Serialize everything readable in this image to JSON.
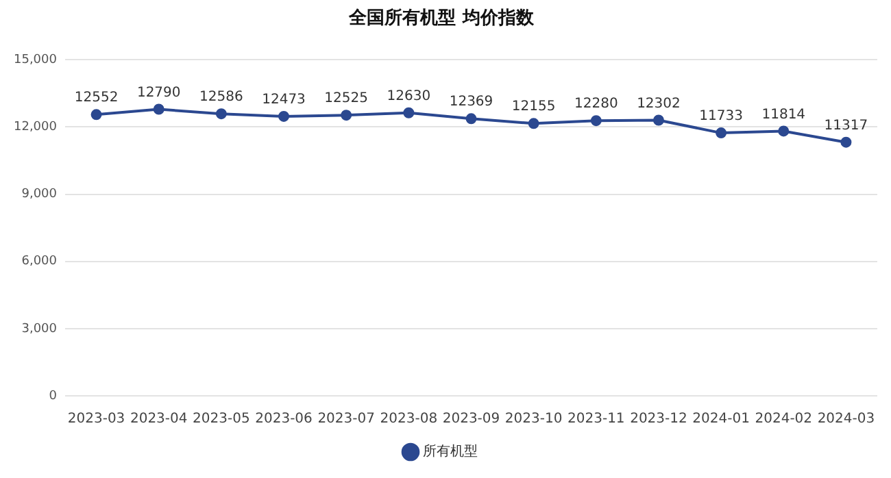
{
  "chart_data": {
    "type": "line",
    "title": "全国所有机型 均价指数",
    "categories": [
      "2023-03",
      "2023-04",
      "2023-05",
      "2023-06",
      "2023-07",
      "2023-08",
      "2023-09",
      "2023-10",
      "2023-11",
      "2023-12",
      "2024-01",
      "2024-02",
      "2024-03"
    ],
    "series": [
      {
        "name": "所有机型",
        "color": "#2b4890",
        "values": [
          12552,
          12790,
          12586,
          12473,
          12525,
          12630,
          12369,
          12155,
          12280,
          12302,
          11733,
          11814,
          11317
        ]
      }
    ],
    "ylim": [
      0,
      15000
    ],
    "yticks": [
      {
        "value": 0,
        "label": "0"
      },
      {
        "value": 3000,
        "label": "3,000"
      },
      {
        "value": 6000,
        "label": "6,000"
      },
      {
        "value": 9000,
        "label": "9,000"
      },
      {
        "value": 12000,
        "label": "12,000"
      },
      {
        "value": 15000,
        "label": "15,000"
      }
    ],
    "grid": "y",
    "legend": "bottom",
    "marker": "circle",
    "line_style": "solid",
    "data_labels": true
  }
}
